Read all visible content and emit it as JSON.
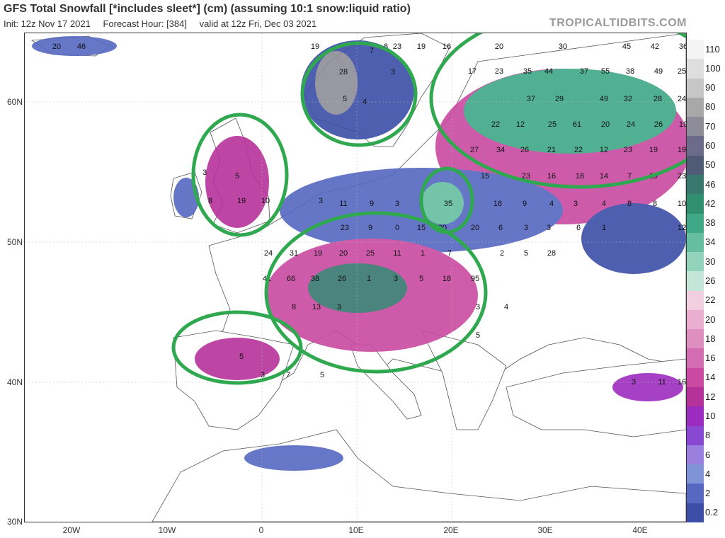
{
  "header": {
    "title": "GFS Total Snowfall [*includes sleet*] (cm) (assuming 10:1 snow:liquid ratio)",
    "init": "Init: 12z Nov 17 2021",
    "forecast_hour": "Forecast Hour: [384]",
    "valid": "valid at 12z Fri, Dec 03 2021",
    "brand": "TROPICALTIDBITS.COM"
  },
  "axes": {
    "lat_labels": [
      "60N",
      "50N",
      "40N",
      "30N"
    ],
    "lon_labels": [
      "20W",
      "10W",
      "0",
      "10E",
      "20E",
      "30E",
      "40E"
    ]
  },
  "colorbar": {
    "levels": [
      "110",
      "100",
      "90",
      "80",
      "70",
      "60",
      "50",
      "46",
      "42",
      "38",
      "34",
      "30",
      "26",
      "22",
      "20",
      "18",
      "16",
      "14",
      "12",
      "10",
      "8",
      "6",
      "4",
      "2",
      "0.2"
    ],
    "colors": [
      "#f4f4f4",
      "#dedede",
      "#c6c6c6",
      "#a8a8a8",
      "#8d8d99",
      "#6c6c8a",
      "#4f5b74",
      "#37776e",
      "#2f8f6f",
      "#3fa886",
      "#66bea0",
      "#93d3bb",
      "#c4e6d8",
      "#f2cfe0",
      "#e9aed0",
      "#df8ec0",
      "#d36cb0",
      "#c94aa0",
      "#b6329b",
      "#9c2bbf",
      "#8848d2",
      "#9a7fde",
      "#7f93d6",
      "#5668c2",
      "#3d4ea8"
    ]
  },
  "map": {
    "value_labels": [
      "20",
      "46",
      "23",
      "8",
      "19",
      "16",
      "19",
      "28",
      "3",
      "7",
      "5",
      "4",
      "20",
      "30",
      "45",
      "42",
      "36",
      "17",
      "23",
      "35",
      "44",
      "37",
      "55",
      "38",
      "49",
      "25",
      "37",
      "29",
      "49",
      "32",
      "28",
      "24",
      "22",
      "12",
      "25",
      "61",
      "20",
      "24",
      "26",
      "19",
      "27",
      "34",
      "26",
      "21",
      "22",
      "12",
      "23",
      "19",
      "19",
      "15",
      "23",
      "16",
      "18",
      "14",
      "7",
      "19",
      "23",
      "3",
      "8",
      "5",
      "19",
      "10",
      "3",
      "11",
      "9",
      "3",
      "6",
      "35",
      "18",
      "9",
      "4",
      "3",
      "4",
      "8",
      "8",
      "10",
      "23",
      "9",
      "0",
      "15",
      "20",
      "20",
      "6",
      "3",
      "3",
      "6",
      "1",
      "12",
      "24",
      "31",
      "19",
      "20",
      "25",
      "11",
      "1",
      "7",
      "2",
      "5",
      "28",
      "41",
      "66",
      "38",
      "26",
      "1",
      "3",
      "5",
      "18",
      "95",
      "8",
      "13",
      "3",
      "3",
      "4",
      "5",
      "3",
      "7",
      "5",
      "3",
      "11",
      "16",
      "5"
    ]
  }
}
